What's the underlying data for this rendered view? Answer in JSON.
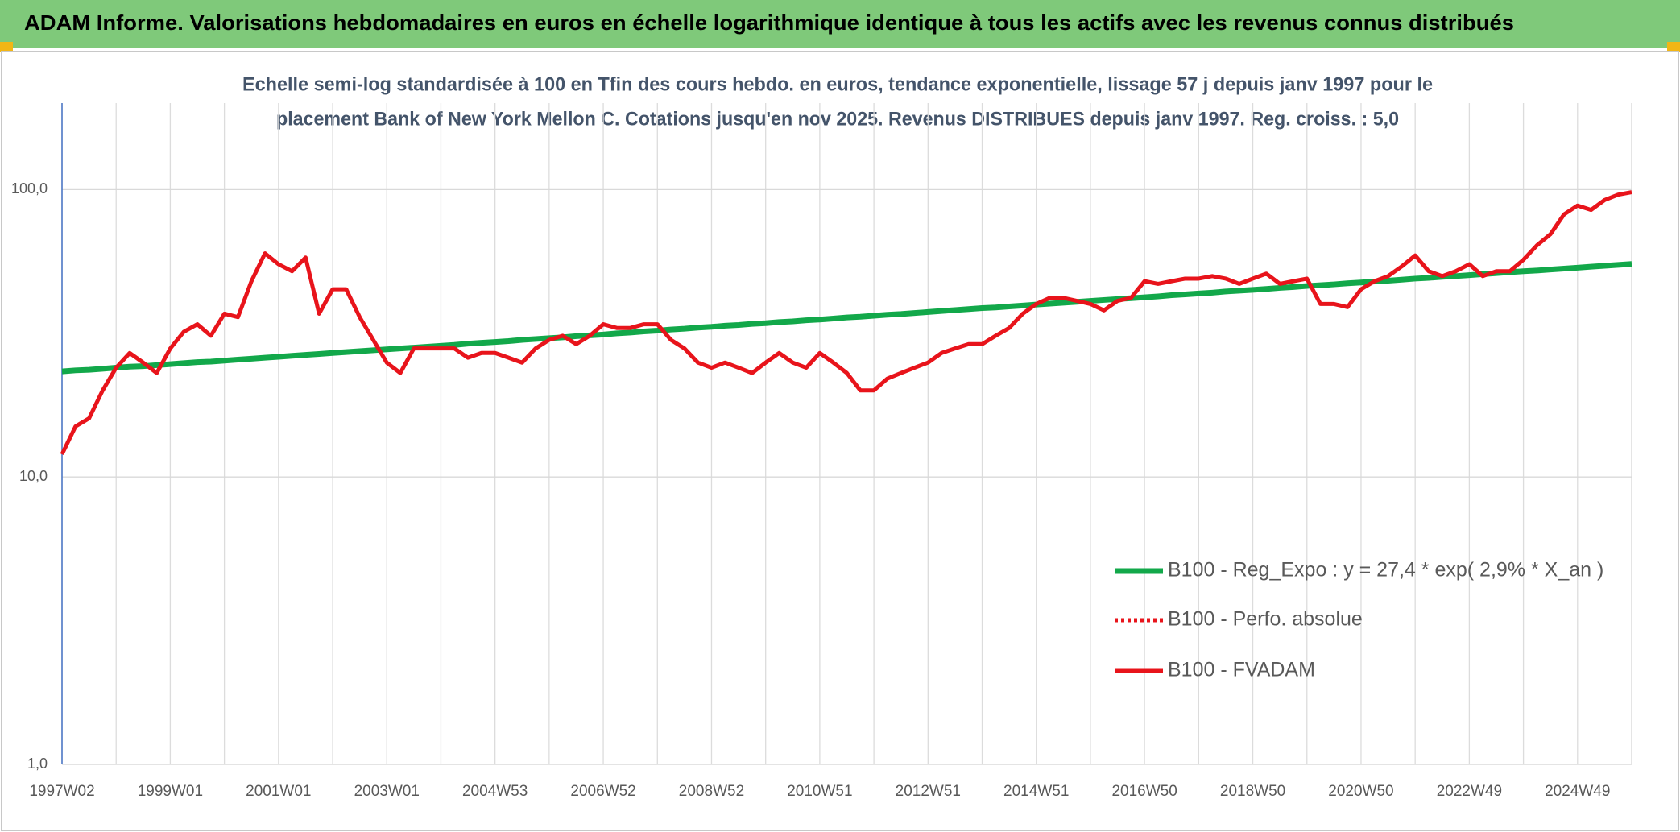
{
  "chart_data": {
    "type": "line",
    "title": "ADAM Informe. Valorisations hebdomadaires en euros en échelle logarithmique identique à tous les actifs avec les revenus connus distribués",
    "subtitle": [
      "Echelle semi-log standardisée à 100 en Tfin des cours hebdo. en euros, tendance exponentielle, lissage 57 j depuis janv 1997 pour le",
      "placement Bank of New York Mellon C. Cotations jusqu'en nov 2025. Revenus DISTRIBUES depuis janv 1997. Reg. croiss. : 5,0"
    ],
    "log_scale": true,
    "grid": true,
    "legend": "right",
    "ylim": [
      1,
      200
    ],
    "yticks": [
      {
        "value": 1,
        "label": "1,0"
      },
      {
        "value": 10,
        "label": "10,0"
      },
      {
        "value": 100,
        "label": "100,0"
      }
    ],
    "categories": [
      "1997W02",
      null,
      null,
      null,
      null,
      null,
      null,
      null,
      "1999W01",
      null,
      null,
      null,
      null,
      null,
      null,
      null,
      "2001W01",
      null,
      null,
      null,
      null,
      null,
      null,
      null,
      "2003W01",
      null,
      null,
      null,
      null,
      null,
      null,
      null,
      "2004W53",
      null,
      null,
      null,
      null,
      null,
      null,
      null,
      "2006W52",
      null,
      null,
      null,
      null,
      null,
      null,
      null,
      "2008W52",
      null,
      null,
      null,
      null,
      null,
      null,
      null,
      "2010W51",
      null,
      null,
      null,
      null,
      null,
      null,
      null,
      "2012W51",
      null,
      null,
      null,
      null,
      null,
      null,
      null,
      "2014W51",
      null,
      null,
      null,
      null,
      null,
      null,
      null,
      "2016W50",
      null,
      null,
      null,
      null,
      null,
      null,
      null,
      "2018W50",
      null,
      null,
      null,
      null,
      null,
      null,
      null,
      "2020W50",
      null,
      null,
      null,
      null,
      null,
      null,
      null,
      "2022W49",
      null,
      null,
      null,
      null,
      null,
      null,
      null,
      "2024W49",
      null,
      null,
      null,
      null
    ],
    "series": [
      {
        "name": "B100 - Reg_Expo : y = 27,4 * exp( 2,9% *  X_an )",
        "color": "#12a84a",
        "style": "solid",
        "values": [
          23.3,
          23.5,
          23.6,
          23.8,
          24.0,
          24.2,
          24.3,
          24.5,
          24.7,
          24.9,
          25.1,
          25.2,
          25.4,
          25.6,
          25.8,
          26.0,
          26.2,
          26.4,
          26.6,
          26.8,
          27.0,
          27.2,
          27.4,
          27.6,
          27.8,
          28.0,
          28.2,
          28.4,
          28.6,
          28.8,
          29.1,
          29.3,
          29.5,
          29.7,
          30.0,
          30.2,
          30.4,
          30.6,
          30.9,
          31.1,
          31.3,
          31.6,
          31.8,
          32.1,
          32.3,
          32.6,
          32.8,
          33.1,
          33.3,
          33.6,
          33.8,
          34.1,
          34.3,
          34.6,
          34.8,
          35.1,
          35.3,
          35.6,
          35.9,
          36.1,
          36.4,
          36.7,
          36.9,
          37.2,
          37.5,
          37.8,
          38.1,
          38.4,
          38.7,
          38.9,
          39.2,
          39.5,
          39.8,
          40.1,
          40.4,
          40.7,
          41.0,
          41.3,
          41.6,
          41.9,
          42.2,
          42.5,
          42.9,
          43.2,
          43.5,
          43.8,
          44.2,
          44.5,
          44.8,
          45.1,
          45.5,
          45.8,
          46.2,
          46.5,
          46.8,
          47.2,
          47.5,
          47.9,
          48.2,
          48.6,
          49.0,
          49.3,
          49.7,
          50.0,
          50.4,
          50.8,
          51.2,
          51.6,
          52.0,
          52.3,
          52.7,
          53.1,
          53.5,
          53.9,
          54.3,
          54.7,
          55.1
        ]
      },
      {
        "name": "B100 - Perfo. absolue",
        "color": "#e8141b",
        "style": "dotted",
        "values": [
          12,
          15,
          16,
          20,
          24,
          27,
          25,
          23,
          28,
          32,
          34,
          31,
          37,
          36,
          48,
          60,
          55,
          52,
          58,
          37,
          45,
          45,
          36,
          30,
          25,
          23,
          28,
          28,
          28,
          28,
          26,
          27,
          27,
          26,
          25,
          28,
          30,
          31,
          29,
          31,
          34,
          33,
          33,
          34,
          34,
          30,
          28,
          25,
          24,
          25,
          24,
          23,
          25,
          27,
          25,
          24,
          27,
          25,
          23,
          20,
          20,
          22,
          23,
          24,
          25,
          27,
          28,
          29,
          29,
          31,
          33,
          37,
          40,
          42,
          42,
          41,
          40,
          38,
          41,
          42,
          48,
          47,
          48,
          49,
          49,
          50,
          49,
          47,
          49,
          51,
          47,
          48,
          49,
          40,
          40,
          39,
          45,
          48,
          50,
          54,
          59,
          52,
          50,
          52,
          55,
          50,
          52,
          52,
          57,
          64,
          70,
          82,
          88,
          85,
          92,
          96,
          98
        ]
      },
      {
        "name": "B100 - FVADAM",
        "color": "#e8141b",
        "style": "solid",
        "values": [
          12,
          15,
          16,
          20,
          24,
          27,
          25,
          23,
          28,
          32,
          34,
          31,
          37,
          36,
          48,
          60,
          55,
          52,
          58,
          37,
          45,
          45,
          36,
          30,
          25,
          23,
          28,
          28,
          28,
          28,
          26,
          27,
          27,
          26,
          25,
          28,
          30,
          31,
          29,
          31,
          34,
          33,
          33,
          34,
          34,
          30,
          28,
          25,
          24,
          25,
          24,
          23,
          25,
          27,
          25,
          24,
          27,
          25,
          23,
          20,
          20,
          22,
          23,
          24,
          25,
          27,
          28,
          29,
          29,
          31,
          33,
          37,
          40,
          42,
          42,
          41,
          40,
          38,
          41,
          42,
          48,
          47,
          48,
          49,
          49,
          50,
          49,
          47,
          49,
          51,
          47,
          48,
          49,
          40,
          40,
          39,
          45,
          48,
          50,
          54,
          59,
          52,
          50,
          52,
          55,
          50,
          52,
          52,
          57,
          64,
          70,
          82,
          88,
          85,
          92,
          96,
          98
        ]
      }
    ]
  }
}
